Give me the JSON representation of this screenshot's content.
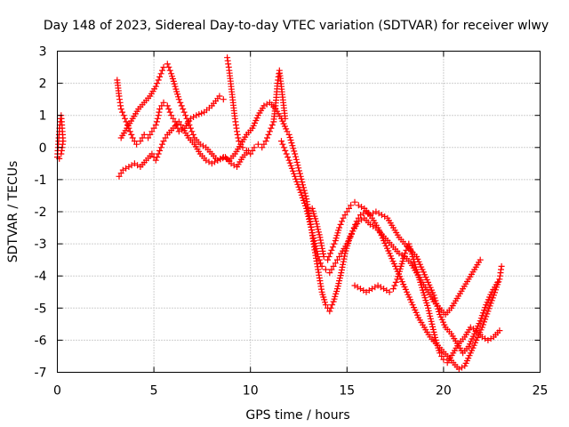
{
  "chart_data": {
    "type": "scatter",
    "title": "Day 148 of 2023, Sidereal Day-to-day VTEC variation (SDTVAR) for receiver wlwy",
    "xlabel": "GPS time / hours",
    "ylabel": "SDTVAR / TECUs",
    "xlim": [
      0,
      25
    ],
    "ylim": [
      -7,
      3
    ],
    "xticks": [
      "0",
      "5",
      "10",
      "15",
      "20",
      "25"
    ],
    "yticks": [
      "3",
      "2",
      "1",
      "0",
      "-1",
      "-2",
      "-3",
      "-4",
      "-5",
      "-6",
      "-7"
    ],
    "grid": true,
    "marker": "+",
    "color": "#ff0000",
    "series": [
      {
        "values": [
          [
            0.0,
            -0.3
          ],
          [
            0.05,
            0.1
          ],
          [
            0.1,
            0.5
          ],
          [
            0.15,
            0.8
          ],
          [
            0.2,
            1.0
          ],
          [
            0.25,
            0.6
          ],
          [
            0.3,
            0.2
          ],
          [
            0.2,
            -0.2
          ],
          [
            0.1,
            -0.35
          ]
        ]
      },
      {
        "values": [
          [
            3.1,
            2.1
          ],
          [
            3.2,
            1.6
          ],
          [
            3.3,
            1.2
          ],
          [
            3.5,
            0.9
          ],
          [
            3.7,
            0.6
          ],
          [
            3.9,
            0.3
          ],
          [
            4.1,
            0.1
          ],
          [
            4.3,
            0.2
          ],
          [
            4.5,
            0.4
          ],
          [
            4.7,
            0.3
          ],
          [
            4.9,
            0.5
          ],
          [
            5.1,
            0.7
          ],
          [
            5.2,
            0.9
          ],
          [
            5.3,
            1.2
          ],
          [
            5.5,
            1.4
          ],
          [
            5.7,
            1.3
          ],
          [
            5.9,
            1.0
          ],
          [
            6.1,
            0.8
          ],
          [
            6.3,
            0.5
          ],
          [
            6.6,
            0.6
          ],
          [
            6.9,
            0.9
          ],
          [
            7.2,
            1.0
          ],
          [
            7.6,
            1.1
          ],
          [
            8.0,
            1.3
          ],
          [
            8.4,
            1.6
          ],
          [
            8.6,
            1.5
          ]
        ]
      },
      {
        "values": [
          [
            3.2,
            -0.9
          ],
          [
            3.4,
            -0.7
          ],
          [
            3.7,
            -0.6
          ],
          [
            4.0,
            -0.5
          ],
          [
            4.3,
            -0.6
          ],
          [
            4.6,
            -0.4
          ],
          [
            4.9,
            -0.2
          ],
          [
            5.1,
            -0.4
          ],
          [
            5.3,
            -0.1
          ],
          [
            5.5,
            0.2
          ],
          [
            5.7,
            0.4
          ],
          [
            6.0,
            0.6
          ],
          [
            6.3,
            0.8
          ],
          [
            6.5,
            0.6
          ],
          [
            6.8,
            0.3
          ],
          [
            7.1,
            0.1
          ],
          [
            7.4,
            -0.2
          ],
          [
            7.7,
            -0.4
          ],
          [
            8.0,
            -0.5
          ],
          [
            8.3,
            -0.4
          ],
          [
            8.7,
            -0.3
          ],
          [
            9.0,
            -0.5
          ],
          [
            9.3,
            -0.6
          ],
          [
            9.6,
            -0.3
          ],
          [
            9.9,
            -0.1
          ]
        ]
      },
      {
        "values": [
          [
            3.3,
            0.3
          ],
          [
            3.6,
            0.6
          ],
          [
            3.9,
            0.9
          ],
          [
            4.2,
            1.2
          ],
          [
            4.5,
            1.4
          ],
          [
            4.8,
            1.6
          ],
          [
            5.1,
            1.9
          ],
          [
            5.3,
            2.2
          ],
          [
            5.5,
            2.5
          ],
          [
            5.7,
            2.6
          ],
          [
            5.9,
            2.3
          ],
          [
            6.1,
            1.9
          ],
          [
            6.3,
            1.5
          ],
          [
            6.5,
            1.2
          ],
          [
            6.7,
            0.9
          ],
          [
            6.9,
            0.6
          ],
          [
            7.1,
            0.3
          ],
          [
            7.4,
            0.1
          ],
          [
            7.7,
            0.0
          ],
          [
            8.0,
            -0.2
          ],
          [
            8.3,
            -0.4
          ],
          [
            8.6,
            -0.3
          ],
          [
            8.9,
            -0.4
          ],
          [
            9.2,
            -0.2
          ],
          [
            9.5,
            0.1
          ],
          [
            9.8,
            0.4
          ],
          [
            10.1,
            0.6
          ],
          [
            10.4,
            1.0
          ],
          [
            10.7,
            1.3
          ],
          [
            11.0,
            1.4
          ],
          [
            11.3,
            1.2
          ],
          [
            11.6,
            0.9
          ],
          [
            11.9,
            0.5
          ]
        ]
      },
      {
        "values": [
          [
            8.8,
            2.8
          ],
          [
            8.9,
            2.4
          ],
          [
            9.0,
            1.9
          ],
          [
            9.1,
            1.4
          ],
          [
            9.2,
            0.9
          ],
          [
            9.3,
            0.5
          ],
          [
            9.4,
            0.2
          ],
          [
            9.6,
            0.0
          ],
          [
            9.8,
            -0.1
          ],
          [
            10.0,
            -0.2
          ],
          [
            10.2,
            0.0
          ],
          [
            10.4,
            0.1
          ],
          [
            10.6,
            0.0
          ],
          [
            10.8,
            0.2
          ],
          [
            11.0,
            0.5
          ],
          [
            11.2,
            0.8
          ],
          [
            11.3,
            1.3
          ],
          [
            11.4,
            2.0
          ],
          [
            11.5,
            2.4
          ],
          [
            11.6,
            1.9
          ],
          [
            11.7,
            1.4
          ],
          [
            11.8,
            0.9
          ]
        ]
      },
      {
        "values": [
          [
            11.6,
            0.2
          ],
          [
            11.8,
            -0.1
          ],
          [
            12.0,
            -0.4
          ],
          [
            12.3,
            -0.9
          ],
          [
            12.6,
            -1.4
          ],
          [
            12.9,
            -1.9
          ],
          [
            13.1,
            -2.4
          ],
          [
            13.3,
            -2.9
          ],
          [
            13.5,
            -3.4
          ],
          [
            13.7,
            -3.7
          ],
          [
            13.9,
            -3.8
          ],
          [
            14.1,
            -3.9
          ],
          [
            14.3,
            -3.7
          ],
          [
            14.5,
            -3.5
          ],
          [
            14.7,
            -3.3
          ],
          [
            15.0,
            -3.0
          ],
          [
            15.3,
            -2.6
          ],
          [
            15.6,
            -2.3
          ],
          [
            15.9,
            -2.2
          ],
          [
            16.2,
            -2.4
          ],
          [
            16.5,
            -2.5
          ],
          [
            16.8,
            -2.7
          ],
          [
            17.1,
            -2.9
          ],
          [
            17.4,
            -3.1
          ],
          [
            17.7,
            -3.3
          ],
          [
            18.0,
            -3.4
          ],
          [
            18.3,
            -3.6
          ],
          [
            18.6,
            -3.9
          ],
          [
            18.9,
            -4.2
          ],
          [
            19.2,
            -4.5
          ],
          [
            19.5,
            -4.8
          ],
          [
            19.8,
            -5.0
          ],
          [
            20.1,
            -5.2
          ],
          [
            20.4,
            -5.0
          ],
          [
            20.7,
            -4.7
          ],
          [
            21.0,
            -4.4
          ],
          [
            21.3,
            -4.1
          ],
          [
            21.6,
            -3.8
          ],
          [
            21.9,
            -3.5
          ]
        ]
      },
      {
        "values": [
          [
            12.0,
            0.4
          ],
          [
            12.3,
            -0.2
          ],
          [
            12.6,
            -0.9
          ],
          [
            12.9,
            -1.6
          ],
          [
            13.1,
            -2.3
          ],
          [
            13.3,
            -3.1
          ],
          [
            13.5,
            -3.8
          ],
          [
            13.7,
            -4.5
          ],
          [
            13.9,
            -4.9
          ],
          [
            14.1,
            -5.1
          ],
          [
            14.3,
            -4.8
          ],
          [
            14.5,
            -4.4
          ],
          [
            14.7,
            -3.9
          ],
          [
            14.9,
            -3.3
          ],
          [
            15.1,
            -2.9
          ],
          [
            15.3,
            -2.6
          ],
          [
            15.5,
            -2.3
          ],
          [
            15.7,
            -2.1
          ],
          [
            16.0,
            -2.0
          ],
          [
            16.3,
            -2.2
          ],
          [
            16.6,
            -2.5
          ],
          [
            16.9,
            -2.9
          ],
          [
            17.2,
            -3.3
          ],
          [
            17.5,
            -3.7
          ],
          [
            17.8,
            -4.1
          ],
          [
            18.1,
            -4.5
          ],
          [
            18.4,
            -4.9
          ],
          [
            18.7,
            -5.3
          ],
          [
            19.0,
            -5.6
          ],
          [
            19.3,
            -5.9
          ],
          [
            19.6,
            -6.1
          ],
          [
            19.9,
            -6.3
          ],
          [
            20.2,
            -6.5
          ],
          [
            20.5,
            -6.7
          ],
          [
            20.8,
            -6.9
          ],
          [
            21.1,
            -6.8
          ],
          [
            21.4,
            -6.4
          ],
          [
            21.7,
            -6.0
          ],
          [
            22.0,
            -5.6
          ],
          [
            22.3,
            -5.1
          ],
          [
            22.6,
            -4.6
          ],
          [
            22.9,
            -4.1
          ],
          [
            23.0,
            -3.7
          ]
        ]
      },
      {
        "values": [
          [
            13.2,
            -1.9
          ],
          [
            13.4,
            -2.3
          ],
          [
            13.6,
            -2.8
          ],
          [
            13.8,
            -3.4
          ],
          [
            14.0,
            -3.5
          ],
          [
            14.2,
            -3.2
          ],
          [
            14.4,
            -2.9
          ],
          [
            14.6,
            -2.5
          ],
          [
            14.8,
            -2.2
          ],
          [
            15.0,
            -2.0
          ],
          [
            15.2,
            -1.8
          ],
          [
            15.4,
            -1.7
          ],
          [
            15.6,
            -1.8
          ],
          [
            15.9,
            -1.9
          ],
          [
            16.2,
            -2.1
          ],
          [
            16.5,
            -2.0
          ],
          [
            16.8,
            -2.1
          ],
          [
            17.1,
            -2.2
          ],
          [
            17.4,
            -2.5
          ],
          [
            17.7,
            -2.8
          ],
          [
            18.0,
            -3.0
          ],
          [
            18.3,
            -3.2
          ],
          [
            18.6,
            -3.4
          ],
          [
            18.9,
            -3.8
          ],
          [
            19.2,
            -4.2
          ],
          [
            19.5,
            -4.6
          ],
          [
            19.8,
            -5.2
          ],
          [
            20.1,
            -5.6
          ],
          [
            20.4,
            -5.8
          ],
          [
            20.7,
            -6.1
          ],
          [
            21.0,
            -6.4
          ],
          [
            21.3,
            -6.2
          ],
          [
            21.6,
            -5.8
          ],
          [
            21.9,
            -5.4
          ],
          [
            22.2,
            -4.9
          ],
          [
            22.5,
            -4.5
          ],
          [
            22.8,
            -4.2
          ]
        ]
      },
      {
        "values": [
          [
            15.4,
            -4.3
          ],
          [
            15.7,
            -4.4
          ],
          [
            16.0,
            -4.5
          ],
          [
            16.3,
            -4.4
          ],
          [
            16.6,
            -4.3
          ],
          [
            16.9,
            -4.4
          ],
          [
            17.2,
            -4.5
          ],
          [
            17.4,
            -4.4
          ],
          [
            17.6,
            -4.1
          ],
          [
            17.8,
            -3.7
          ],
          [
            18.0,
            -3.3
          ],
          [
            18.2,
            -3.0
          ],
          [
            18.4,
            -3.4
          ],
          [
            18.6,
            -3.8
          ],
          [
            18.8,
            -4.2
          ],
          [
            19.0,
            -4.6
          ],
          [
            19.2,
            -5.0
          ],
          [
            19.4,
            -5.5
          ],
          [
            19.6,
            -6.0
          ],
          [
            19.8,
            -6.4
          ],
          [
            20.0,
            -6.6
          ],
          [
            20.2,
            -6.7
          ],
          [
            20.5,
            -6.4
          ],
          [
            20.8,
            -6.1
          ],
          [
            21.1,
            -5.9
          ],
          [
            21.4,
            -5.6
          ],
          [
            21.7,
            -5.7
          ],
          [
            22.0,
            -5.9
          ],
          [
            22.3,
            -6.0
          ],
          [
            22.6,
            -5.9
          ],
          [
            22.9,
            -5.7
          ]
        ]
      }
    ]
  }
}
